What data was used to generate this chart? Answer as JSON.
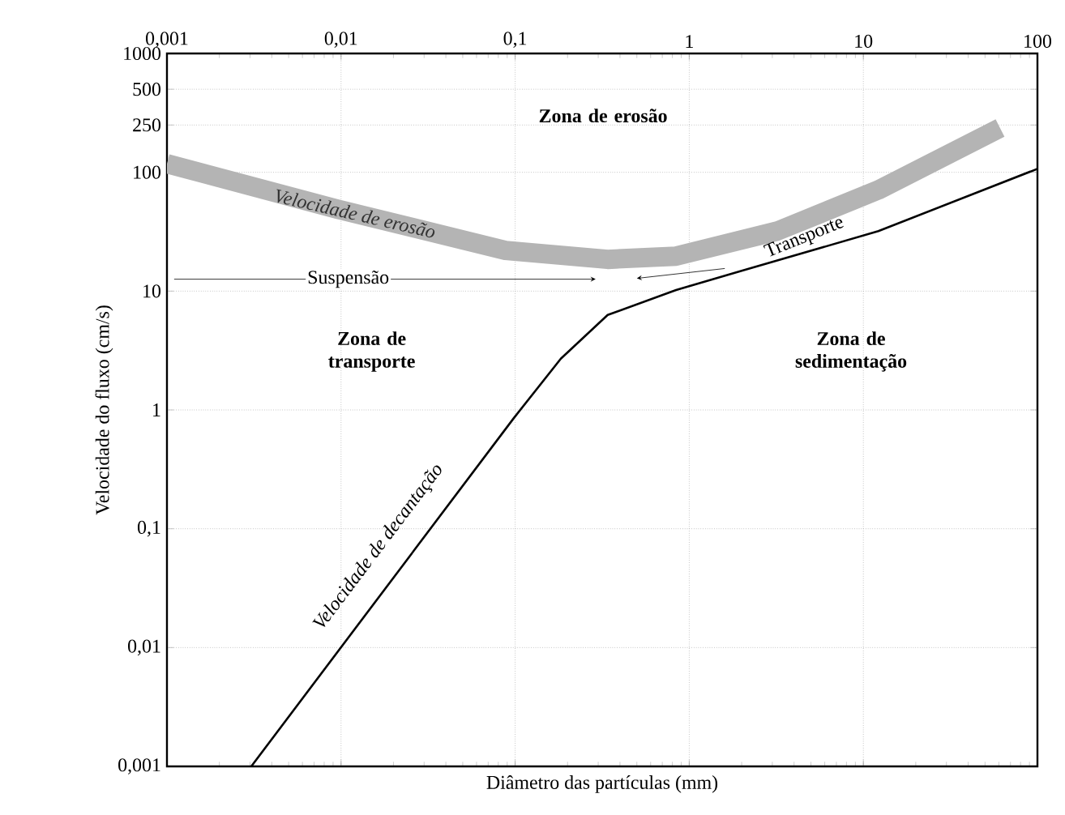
{
  "chart_data": {
    "type": "line",
    "xlabel": "Diâmetro das partículas  (mm)",
    "ylabel": "Velocidade do fluxo (cm/s)",
    "log": "xy",
    "xlim": [
      0.001,
      100
    ],
    "ylim": [
      0.001,
      1000
    ],
    "xticks": [
      {
        "value": 0.001,
        "label": "0,001"
      },
      {
        "value": 0.01,
        "label": "0,01"
      },
      {
        "value": 0.1,
        "label": "0,1"
      },
      1,
      10,
      100
    ],
    "yticks": [
      {
        "value": 0.001,
        "label": "0,001"
      },
      {
        "value": 0.01,
        "label": "0,01"
      },
      {
        "value": 0.1,
        "label": "0,1"
      },
      1,
      10,
      100,
      250,
      500,
      1000
    ],
    "grid": true,
    "marker": "none",
    "line_style": "solid",
    "series": [
      {
        "name": "Velocidade de erosão",
        "color": "#b4b4b4",
        "x": [
          0.001,
          0.0095,
          0.088,
          0.34,
          0.84,
          3.2,
          12.2,
          61
        ],
        "values": [
          118,
          49,
          22,
          18.5,
          19.7,
          32,
          71,
          236
        ]
      },
      {
        "name": "Velocidade de decantação",
        "color": "#000000",
        "x": [
          0.00305,
          0.098,
          0.183,
          0.34,
          0.84,
          2.0,
          12.2,
          100
        ],
        "values": [
          0.001,
          0.85,
          2.7,
          6.3,
          10.2,
          14.8,
          32,
          107
        ]
      }
    ],
    "annotations": [
      "Zona de erosão",
      "Zona de transporte",
      "Zona de sedimentação",
      "Suspensão",
      "Transporte"
    ]
  }
}
